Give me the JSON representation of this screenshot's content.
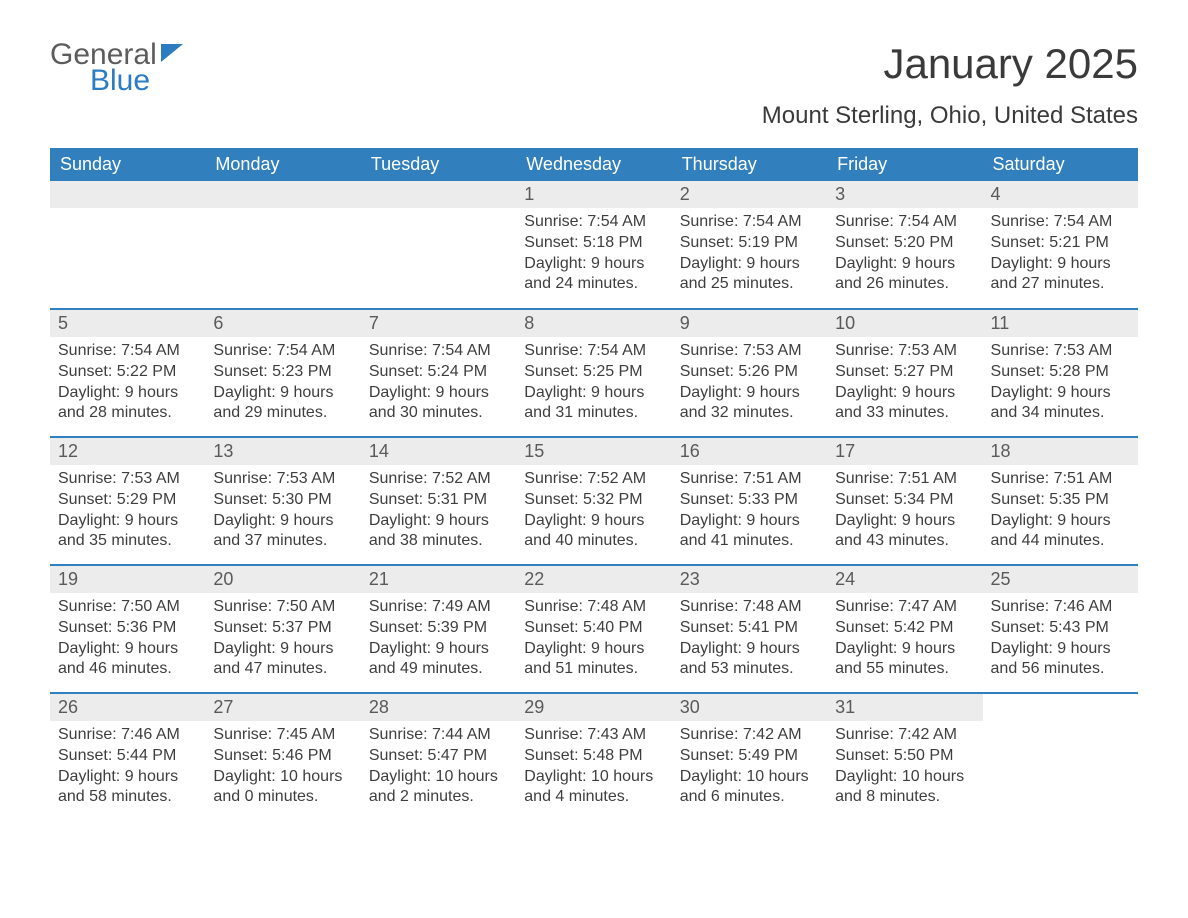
{
  "logo": {
    "word1": "General",
    "word2": "Blue"
  },
  "title": "January 2025",
  "location": "Mount Sterling, Ohio, United States",
  "columns": [
    "Sunday",
    "Monday",
    "Tuesday",
    "Wednesday",
    "Thursday",
    "Friday",
    "Saturday"
  ],
  "colors": {
    "header_bg": "#327fbd",
    "header_text": "#ffffff",
    "daynum_bg": "#ececec",
    "text": "#3a3a3a",
    "logo_gray": "#5c5c5c",
    "logo_blue": "#2b7cc0",
    "page_bg": "#ffffff"
  },
  "weeks": [
    [
      null,
      null,
      null,
      {
        "n": "1",
        "sunrise": "7:54 AM",
        "sunset": "5:18 PM",
        "daylight": "9 hours and 24 minutes."
      },
      {
        "n": "2",
        "sunrise": "7:54 AM",
        "sunset": "5:19 PM",
        "daylight": "9 hours and 25 minutes."
      },
      {
        "n": "3",
        "sunrise": "7:54 AM",
        "sunset": "5:20 PM",
        "daylight": "9 hours and 26 minutes."
      },
      {
        "n": "4",
        "sunrise": "7:54 AM",
        "sunset": "5:21 PM",
        "daylight": "9 hours and 27 minutes."
      }
    ],
    [
      {
        "n": "5",
        "sunrise": "7:54 AM",
        "sunset": "5:22 PM",
        "daylight": "9 hours and 28 minutes."
      },
      {
        "n": "6",
        "sunrise": "7:54 AM",
        "sunset": "5:23 PM",
        "daylight": "9 hours and 29 minutes."
      },
      {
        "n": "7",
        "sunrise": "7:54 AM",
        "sunset": "5:24 PM",
        "daylight": "9 hours and 30 minutes."
      },
      {
        "n": "8",
        "sunrise": "7:54 AM",
        "sunset": "5:25 PM",
        "daylight": "9 hours and 31 minutes."
      },
      {
        "n": "9",
        "sunrise": "7:53 AM",
        "sunset": "5:26 PM",
        "daylight": "9 hours and 32 minutes."
      },
      {
        "n": "10",
        "sunrise": "7:53 AM",
        "sunset": "5:27 PM",
        "daylight": "9 hours and 33 minutes."
      },
      {
        "n": "11",
        "sunrise": "7:53 AM",
        "sunset": "5:28 PM",
        "daylight": "9 hours and 34 minutes."
      }
    ],
    [
      {
        "n": "12",
        "sunrise": "7:53 AM",
        "sunset": "5:29 PM",
        "daylight": "9 hours and 35 minutes."
      },
      {
        "n": "13",
        "sunrise": "7:53 AM",
        "sunset": "5:30 PM",
        "daylight": "9 hours and 37 minutes."
      },
      {
        "n": "14",
        "sunrise": "7:52 AM",
        "sunset": "5:31 PM",
        "daylight": "9 hours and 38 minutes."
      },
      {
        "n": "15",
        "sunrise": "7:52 AM",
        "sunset": "5:32 PM",
        "daylight": "9 hours and 40 minutes."
      },
      {
        "n": "16",
        "sunrise": "7:51 AM",
        "sunset": "5:33 PM",
        "daylight": "9 hours and 41 minutes."
      },
      {
        "n": "17",
        "sunrise": "7:51 AM",
        "sunset": "5:34 PM",
        "daylight": "9 hours and 43 minutes."
      },
      {
        "n": "18",
        "sunrise": "7:51 AM",
        "sunset": "5:35 PM",
        "daylight": "9 hours and 44 minutes."
      }
    ],
    [
      {
        "n": "19",
        "sunrise": "7:50 AM",
        "sunset": "5:36 PM",
        "daylight": "9 hours and 46 minutes."
      },
      {
        "n": "20",
        "sunrise": "7:50 AM",
        "sunset": "5:37 PM",
        "daylight": "9 hours and 47 minutes."
      },
      {
        "n": "21",
        "sunrise": "7:49 AM",
        "sunset": "5:39 PM",
        "daylight": "9 hours and 49 minutes."
      },
      {
        "n": "22",
        "sunrise": "7:48 AM",
        "sunset": "5:40 PM",
        "daylight": "9 hours and 51 minutes."
      },
      {
        "n": "23",
        "sunrise": "7:48 AM",
        "sunset": "5:41 PM",
        "daylight": "9 hours and 53 minutes."
      },
      {
        "n": "24",
        "sunrise": "7:47 AM",
        "sunset": "5:42 PM",
        "daylight": "9 hours and 55 minutes."
      },
      {
        "n": "25",
        "sunrise": "7:46 AM",
        "sunset": "5:43 PM",
        "daylight": "9 hours and 56 minutes."
      }
    ],
    [
      {
        "n": "26",
        "sunrise": "7:46 AM",
        "sunset": "5:44 PM",
        "daylight": "9 hours and 58 minutes."
      },
      {
        "n": "27",
        "sunrise": "7:45 AM",
        "sunset": "5:46 PM",
        "daylight": "10 hours and 0 minutes."
      },
      {
        "n": "28",
        "sunrise": "7:44 AM",
        "sunset": "5:47 PM",
        "daylight": "10 hours and 2 minutes."
      },
      {
        "n": "29",
        "sunrise": "7:43 AM",
        "sunset": "5:48 PM",
        "daylight": "10 hours and 4 minutes."
      },
      {
        "n": "30",
        "sunrise": "7:42 AM",
        "sunset": "5:49 PM",
        "daylight": "10 hours and 6 minutes."
      },
      {
        "n": "31",
        "sunrise": "7:42 AM",
        "sunset": "5:50 PM",
        "daylight": "10 hours and 8 minutes."
      },
      null
    ]
  ],
  "labels": {
    "sunrise": "Sunrise: ",
    "sunset": "Sunset: ",
    "daylight": "Daylight: "
  }
}
